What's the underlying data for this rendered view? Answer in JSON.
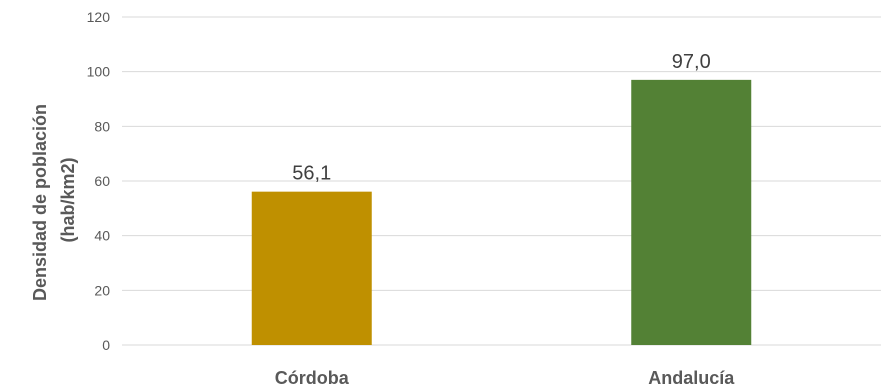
{
  "chart_data": {
    "type": "bar",
    "categories": [
      "Córdoba",
      "Andalucía"
    ],
    "values": [
      56.1,
      97.0
    ],
    "data_labels": [
      "56,1",
      "97,0"
    ],
    "bar_colors": [
      "#bf9000",
      "#538135"
    ],
    "ylabel_lines": [
      "Densidad de población",
      "(hab/km2)"
    ],
    "ylim": [
      0,
      120
    ],
    "yticks": [
      0,
      20,
      40,
      60,
      80,
      100,
      120
    ],
    "grid": true,
    "legend": "none"
  }
}
